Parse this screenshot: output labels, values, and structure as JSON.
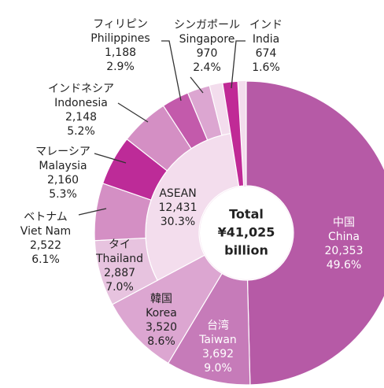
{
  "chart_data": {
    "type": "donut",
    "total_title": "Total",
    "total_value": 41025,
    "total_label": "¥41,025",
    "total_unit": "billion",
    "slices": [
      {
        "name_ja": "中国",
        "name": "China",
        "value": 20353,
        "value_label": "20,353",
        "percent": 49.6,
        "percent_label": "49.6%",
        "color": "#b65aa6"
      },
      {
        "name_ja": "台湾",
        "name": "Taiwan",
        "value": 3692,
        "value_label": "3,692",
        "percent": 9.0,
        "percent_label": "9.0%",
        "color": "#c67bb9"
      },
      {
        "name_ja": "韓国",
        "name": "Korea",
        "value": 3520,
        "value_label": "3,520",
        "percent": 8.6,
        "percent_label": "8.6%",
        "color": "#dca6d1"
      },
      {
        "name": "ASEAN",
        "value": 12431,
        "value_label": "12,431",
        "percent": 30.3,
        "percent_label": "30.3%",
        "color": "#f3dded",
        "children": [
          {
            "name_ja": "タイ",
            "name": "Thailand",
            "value": 2887,
            "value_label": "2,887",
            "percent": 7.0,
            "percent_label": "7.0%",
            "color": "#e7c3df"
          },
          {
            "name_ja": "ベトナム",
            "name": "Viet Nam",
            "value": 2522,
            "value_label": "2,522",
            "percent": 6.1,
            "percent_label": "6.1%",
            "color": "#d48fc4"
          },
          {
            "name_ja": "マレーシア",
            "name": "Malaysia",
            "value": 2160,
            "value_label": "2,160",
            "percent": 5.3,
            "percent_label": "5.3%",
            "color": "#bd2b98"
          },
          {
            "name_ja": "インドネシア",
            "name": "Indonesia",
            "value": 2148,
            "value_label": "2,148",
            "percent": 5.2,
            "percent_label": "5.2%",
            "color": "#d48fc4"
          },
          {
            "name_ja": "フィリピン",
            "name": "Philippines",
            "value": 1188,
            "value_label": "1,188",
            "percent": 2.9,
            "percent_label": "2.9%",
            "color": "#c35aab"
          },
          {
            "name_ja": "シンガポール",
            "name": "Singapore",
            "value": 970,
            "value_label": "970",
            "percent": 2.4,
            "percent_label": "2.4%",
            "color": "#dca6d1"
          }
        ]
      },
      {
        "name_ja": "インド",
        "name": "India",
        "value": 674,
        "value_label": "674",
        "percent": 1.6,
        "percent_label": "1.6%",
        "color": "#c02a96"
      }
    ]
  }
}
